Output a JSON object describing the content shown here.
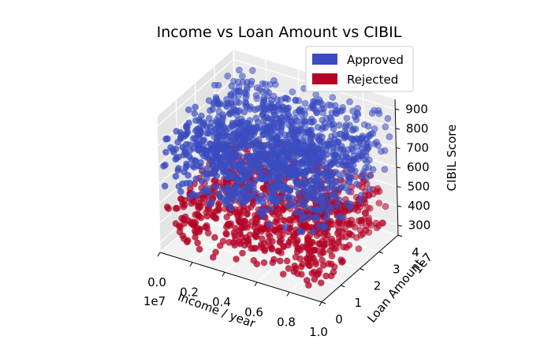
{
  "chart_data": {
    "type": "scatter",
    "projection": "3d",
    "title": "Income vs Loan Amount vs CIBIL",
    "xlabel": "Income / year",
    "ylabel": "Loan Amount",
    "zlabel": "CIBIL Score",
    "x_offset_label": "1e7",
    "y_offset_label": "1e7",
    "xlim": [
      0.0,
      1.0
    ],
    "ylim": [
      0,
      4
    ],
    "zlim": [
      250,
      950
    ],
    "x_ticks": [
      "0.0",
      "0.2",
      "0.4",
      "0.6",
      "0.8",
      "1.0"
    ],
    "y_ticks": [
      "0",
      "1",
      "2",
      "3",
      "4"
    ],
    "z_ticks": [
      "300",
      "400",
      "500",
      "600",
      "700",
      "800",
      "900"
    ],
    "grid": true,
    "legend_position": "top-right",
    "series": [
      {
        "name": "Approved",
        "color": "#3a4cc0",
        "cibil_range": [
          550,
          900
        ]
      },
      {
        "name": "Rejected",
        "color": "#b40426",
        "cibil_range": [
          300,
          550
        ]
      }
    ]
  }
}
